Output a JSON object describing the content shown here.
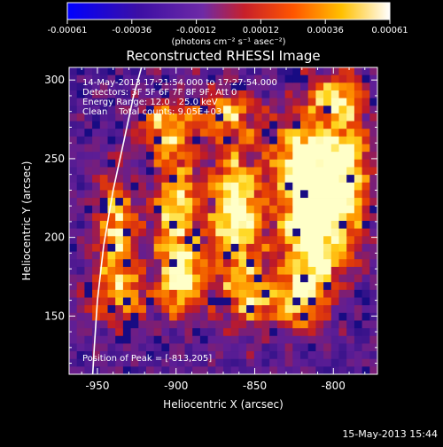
{
  "chart_data": {
    "type": "heatmap",
    "title": "Reconstructed RHESSI Image",
    "xlabel": "Heliocentric X (arcsec)",
    "ylabel": "Heliocentric Y (arcsec)",
    "xlim": [
      -968,
      -772
    ],
    "ylim": [
      113,
      308
    ],
    "x_ticks": [
      -950,
      -900,
      -850,
      -800
    ],
    "y_ticks": [
      150,
      200,
      250,
      300
    ],
    "colorbar": {
      "label": "(photons cm⁻² s⁻¹ asec⁻²)",
      "range": [
        -0.00061,
        0.00061
      ],
      "ticks": [
        "-0.00061",
        "-0.00036",
        "-0.00012",
        "0.00012",
        "0.00036",
        "0.00061"
      ],
      "colormap": "blue-purple-red-yellow-white"
    },
    "annotations": [
      "14-May-2013 17:21:54.000 to 17:27:54.000",
      "Detectors: 3F 5F 6F 7F 8F 9F, Att 0",
      "Energy Range: 12.0 - 25.0 keV",
      "Clean    Total counts: 9.05E+03"
    ],
    "peak_label": "Position of Peak = [-813,205]",
    "peak": [
      -813,
      205
    ],
    "limb_curve": [
      [
        -922,
        308
      ],
      [
        -927,
        290
      ],
      [
        -933,
        262
      ],
      [
        -940,
        230
      ],
      [
        -946,
        195
      ],
      [
        -950,
        160
      ],
      [
        -952,
        130
      ],
      [
        -953,
        113
      ]
    ],
    "emission_features": [
      {
        "x": -938,
        "y": 200,
        "amp": 0.75,
        "sx": 9,
        "sy": 28
      },
      {
        "x": -930,
        "y": 160,
        "amp": 0.45,
        "sx": 8,
        "sy": 12
      },
      {
        "x": -900,
        "y": 215,
        "amp": 0.7,
        "sx": 10,
        "sy": 35
      },
      {
        "x": -895,
        "y": 170,
        "amp": 0.55,
        "sx": 10,
        "sy": 14
      },
      {
        "x": -910,
        "y": 270,
        "amp": 0.45,
        "sx": 12,
        "sy": 12
      },
      {
        "x": -870,
        "y": 280,
        "amp": 0.5,
        "sx": 16,
        "sy": 10
      },
      {
        "x": -862,
        "y": 215,
        "amp": 0.85,
        "sx": 12,
        "sy": 32
      },
      {
        "x": -850,
        "y": 160,
        "amp": 0.55,
        "sx": 12,
        "sy": 12
      },
      {
        "x": -813,
        "y": 205,
        "amp": 1.0,
        "sx": 14,
        "sy": 26
      },
      {
        "x": -818,
        "y": 250,
        "amp": 0.85,
        "sx": 14,
        "sy": 18
      },
      {
        "x": -820,
        "y": 160,
        "amp": 0.6,
        "sx": 10,
        "sy": 14
      },
      {
        "x": -790,
        "y": 240,
        "amp": 0.65,
        "sx": 10,
        "sy": 30
      },
      {
        "x": -800,
        "y": 290,
        "amp": 0.6,
        "sx": 12,
        "sy": 10
      },
      {
        "x": -955,
        "y": 160,
        "amp": 0.3,
        "sx": 6,
        "sy": 10
      }
    ]
  },
  "footer": {
    "timestamp": "15-May-2013 15:44"
  }
}
